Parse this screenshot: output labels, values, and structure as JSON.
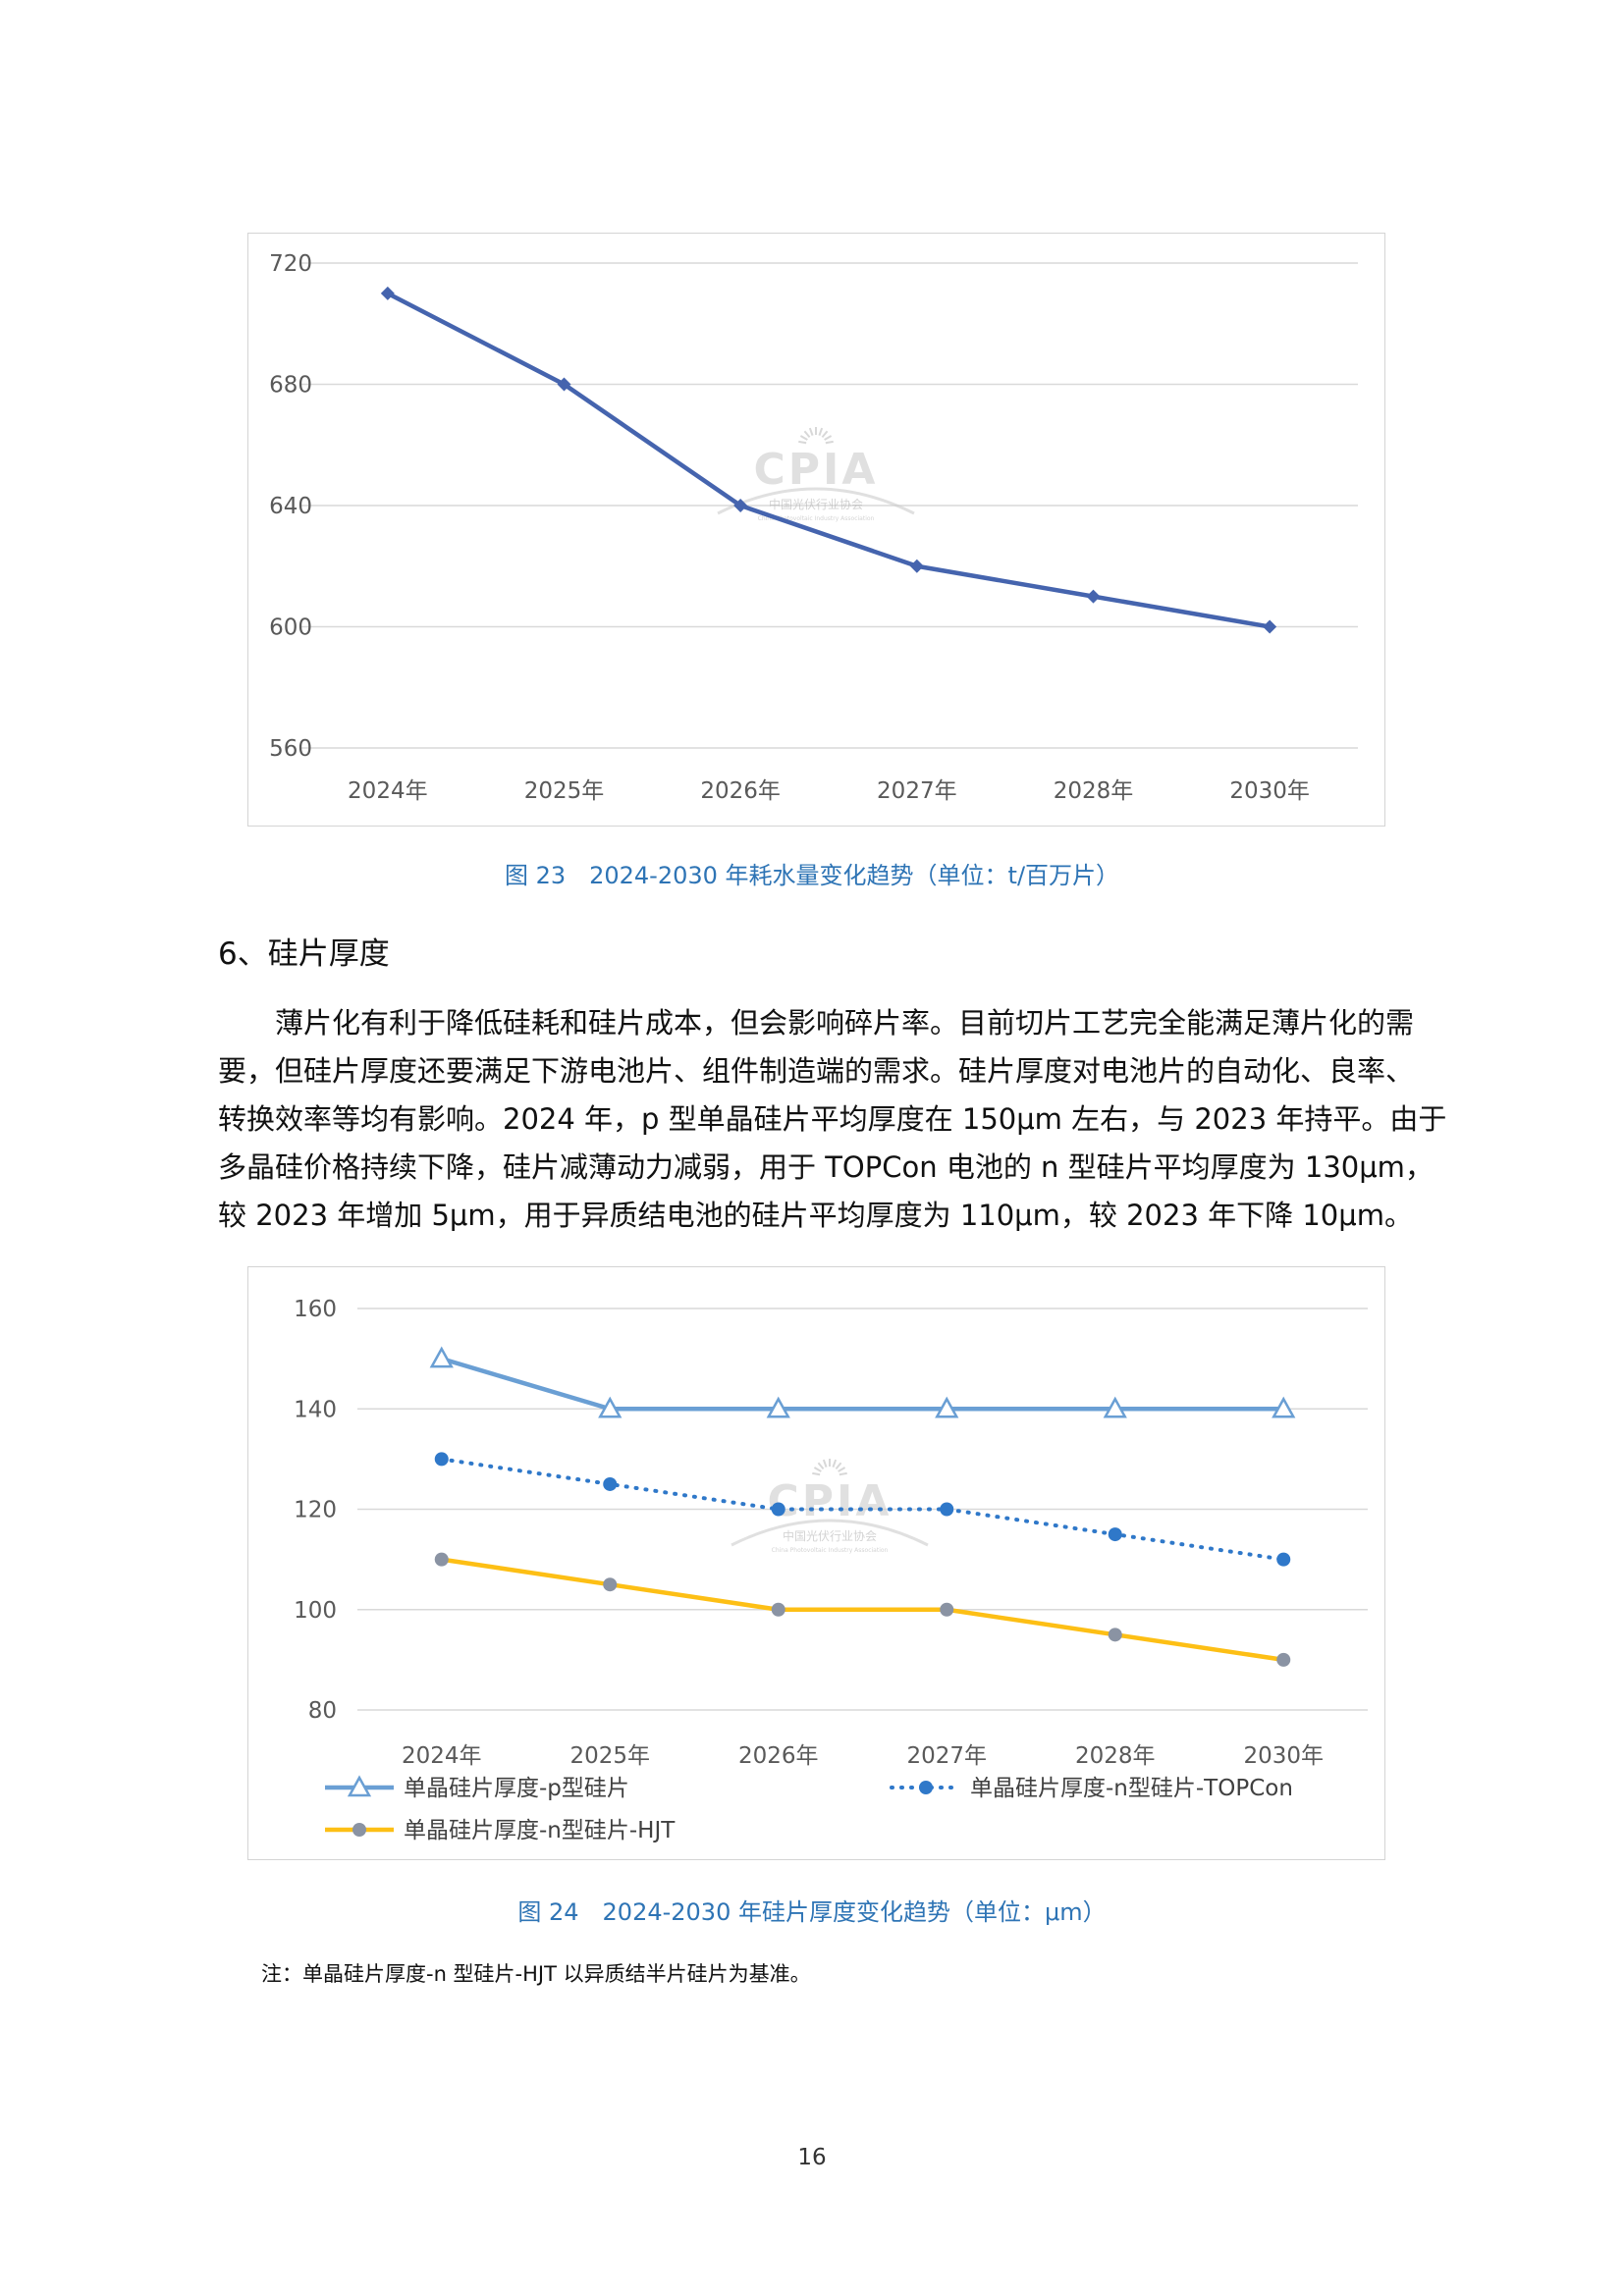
{
  "figure23": {
    "caption": "图 23　2024-2030 年耗水量变化趋势（单位：t/百万片）"
  },
  "figure24": {
    "caption": "图 24　2024-2030 年硅片厚度变化趋势（单位：μm）"
  },
  "watermark": {
    "logo_text": "CPIA",
    "org_cn": "中国光伏行业协会",
    "org_en": "China Photovoltaic Industry Association"
  },
  "section": {
    "heading": "6、硅片厚度"
  },
  "body": {
    "lines": [
      "薄片化有利于降低硅耗和硅片成本，但会影响碎片率。目前切片工艺完全能满足薄片化的需",
      "要，但硅片厚度还要满足下游电池片、组件制造端的需求。硅片厚度对电池片的自动化、良率、",
      "转换效率等均有影响。2024 年，p 型单晶硅片平均厚度在 150μm 左右，与 2023 年持平。由于",
      "多晶硅价格持续下降，硅片减薄动力减弱，用于 TOPCon 电池的 n 型硅片平均厚度为 130μm，",
      "较 2023 年增加 5μm，用于异质结电池的硅片平均厚度为 110μm，较 2023 年下降 10μm。"
    ]
  },
  "note": "注：单晶硅片厚度-n 型硅片-HJT 以异质结半片硅片为基准。",
  "page_number": "16",
  "chart_data": [
    {
      "type": "line",
      "categories": [
        "2024年",
        "2025年",
        "2026年",
        "2027年",
        "2028年",
        "2030年"
      ],
      "series": [
        {
          "values": [
            710,
            680,
            640,
            620,
            610,
            600
          ],
          "color": "#4564ae",
          "marker": "diamond",
          "style": "solid"
        }
      ],
      "ylim": [
        560,
        720
      ],
      "yticks": [
        560,
        600,
        640,
        680,
        720
      ],
      "grid": true,
      "legend": "none"
    },
    {
      "type": "line",
      "categories": [
        "2024年",
        "2025年",
        "2026年",
        "2027年",
        "2028年",
        "2030年"
      ],
      "series": [
        {
          "name": "单晶硅片厚度-p型硅片",
          "values": [
            150,
            140,
            140,
            140,
            140,
            140
          ],
          "color": "#6a9fd4",
          "marker": "triangle-open",
          "style": "solid"
        },
        {
          "name": "单晶硅片厚度-n型硅片-TOPCon",
          "values": [
            130,
            125,
            120,
            120,
            115,
            110
          ],
          "color": "#2f78c9",
          "marker": "circle",
          "style": "dotted"
        },
        {
          "name": "单晶硅片厚度-n型硅片-HJT",
          "values": [
            110,
            105,
            100,
            100,
            95,
            90
          ],
          "color": "#fdbf15",
          "marker": "circle-gray",
          "marker_color": "#8a93a3",
          "style": "solid"
        }
      ],
      "ylim": [
        80,
        160
      ],
      "yticks": [
        80,
        100,
        120,
        140,
        160
      ],
      "grid": true,
      "legend": "bottom"
    }
  ]
}
